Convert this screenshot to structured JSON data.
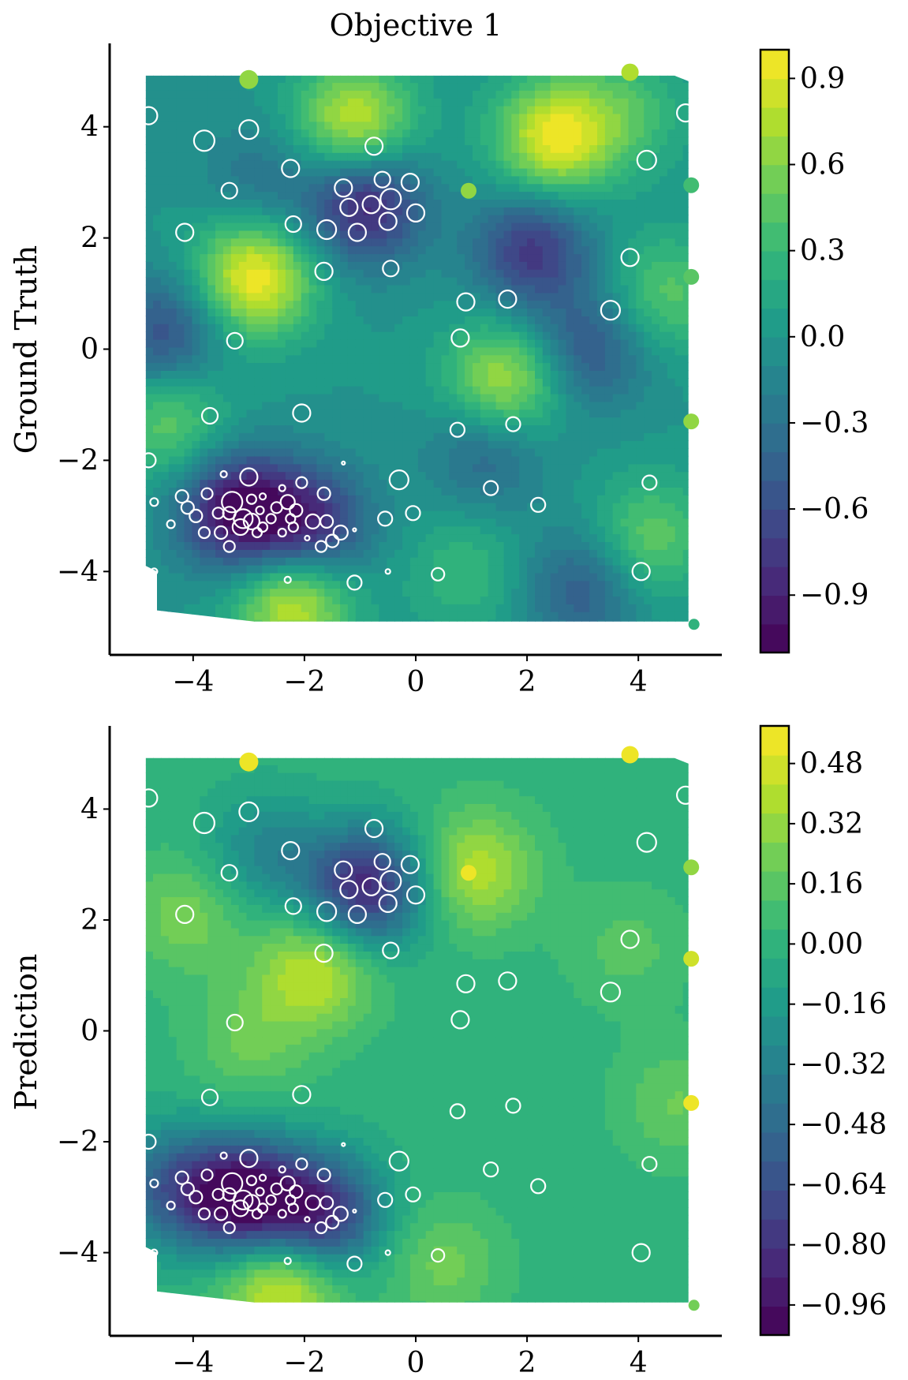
{
  "chart_data": [
    {
      "type": "contour",
      "title": "Objective 1",
      "ylabel": "Ground Truth",
      "xlabel": "",
      "xlim": [
        -5.5,
        5.5
      ],
      "ylim": [
        -5.5,
        5.5
      ],
      "xticks": [
        -4,
        -2,
        0,
        2,
        4
      ],
      "yticks": [
        -4,
        -2,
        0,
        2,
        4
      ],
      "xtick_labels": [
        "−4",
        "−2",
        "0",
        "2",
        "4"
      ],
      "ytick_labels": [
        "−4",
        "−2",
        "0",
        "2",
        "4"
      ],
      "colorbar": {
        "range": [
          -1.1,
          1.0
        ],
        "ticks": [
          0.9,
          0.6,
          0.3,
          0.0,
          -0.3,
          -0.6,
          -0.9
        ],
        "tick_labels": [
          "0.9",
          "0.6",
          "0.3",
          "0.0",
          "−0.3",
          "−0.6",
          "−0.9"
        ]
      },
      "peaks": [
        {
          "x": -2.9,
          "y": 1.3,
          "v": 1.0
        },
        {
          "x": 2.5,
          "y": 3.8,
          "v": 0.95
        },
        {
          "x": -1.1,
          "y": 4.1,
          "v": 0.85
        },
        {
          "x": 1.6,
          "y": -0.6,
          "v": 0.8
        },
        {
          "x": -2.2,
          "y": -4.5,
          "v": 0.9
        },
        {
          "x": -4.4,
          "y": -1.3,
          "v": 0.5
        },
        {
          "x": 4.2,
          "y": -3.4,
          "v": 0.5
        },
        {
          "x": 4.5,
          "y": 1.0,
          "v": 0.45
        },
        {
          "x": 3.8,
          "y": 4.3,
          "v": 0.35
        },
        {
          "x": 0.9,
          "y": -4.0,
          "v": 0.3
        },
        {
          "x": -3.2,
          "y": -2.9,
          "v": -1.05
        },
        {
          "x": -1.9,
          "y": -3.2,
          "v": -0.85
        },
        {
          "x": -0.9,
          "y": 2.6,
          "v": -0.9
        },
        {
          "x": 2.1,
          "y": 1.8,
          "v": -0.75
        },
        {
          "x": -4.5,
          "y": 0.3,
          "v": -0.6
        },
        {
          "x": 3.1,
          "y": 0.0,
          "v": -0.55
        },
        {
          "x": 1.3,
          "y": -1.8,
          "v": -0.45
        },
        {
          "x": 3.0,
          "y": -4.3,
          "v": -0.5
        },
        {
          "x": -2.8,
          "y": 3.0,
          "v": -0.3
        }
      ]
    },
    {
      "type": "contour",
      "title": "",
      "ylabel": "Prediction",
      "xlabel": "",
      "xlim": [
        -5.5,
        5.5
      ],
      "ylim": [
        -5.5,
        5.5
      ],
      "xticks": [
        -4,
        -2,
        0,
        2,
        4
      ],
      "yticks": [
        -4,
        -2,
        0,
        2,
        4
      ],
      "xtick_labels": [
        "−4",
        "−2",
        "0",
        "2",
        "4"
      ],
      "ytick_labels": [
        "−4",
        "−2",
        "0",
        "2",
        "4"
      ],
      "colorbar": {
        "range": [
          -1.04,
          0.58
        ],
        "ticks": [
          0.48,
          0.32,
          0.16,
          0.0,
          -0.16,
          -0.32,
          -0.48,
          -0.64,
          -0.8,
          -0.96
        ],
        "tick_labels": [
          "0.48",
          "0.32",
          "0.16",
          "0.00",
          "−0.16",
          "−0.32",
          "−0.48",
          "−0.64",
          "−0.80",
          "−0.96"
        ]
      },
      "peaks": [
        {
          "x": -1.8,
          "y": 1.1,
          "v": 0.45
        },
        {
          "x": -2.4,
          "y": -4.5,
          "v": 0.58
        },
        {
          "x": 1.1,
          "y": 2.9,
          "v": 0.4
        },
        {
          "x": -4.1,
          "y": 2.1,
          "v": 0.25
        },
        {
          "x": -3.0,
          "y": -0.2,
          "v": 0.2
        },
        {
          "x": 0.5,
          "y": -4.2,
          "v": 0.22
        },
        {
          "x": 4.7,
          "y": -1.3,
          "v": 0.2
        },
        {
          "x": 3.8,
          "y": 1.5,
          "v": 0.15
        },
        {
          "x": -3.1,
          "y": -3.0,
          "v": -1.0
        },
        {
          "x": -1.7,
          "y": -3.3,
          "v": -0.85
        },
        {
          "x": -0.9,
          "y": 2.6,
          "v": -0.85
        },
        {
          "x": -4.4,
          "y": -2.8,
          "v": -0.5
        },
        {
          "x": -2.7,
          "y": 3.2,
          "v": -0.3
        }
      ]
    }
  ],
  "points": [
    {
      "x": -3.0,
      "y": 4.85,
      "r": 12,
      "v": 0.6
    },
    {
      "x": 3.85,
      "y": 4.98,
      "r": 11,
      "v": 0.7
    },
    {
      "x": -4.8,
      "y": 4.2,
      "r": 11,
      "v": null
    },
    {
      "x": 4.85,
      "y": 4.25,
      "r": 11,
      "v": null
    },
    {
      "x": -3.8,
      "y": 3.75,
      "r": 13,
      "v": null
    },
    {
      "x": -3.0,
      "y": 3.95,
      "r": 12,
      "v": null
    },
    {
      "x": -0.75,
      "y": 3.65,
      "r": 11,
      "v": null
    },
    {
      "x": -2.25,
      "y": 3.25,
      "r": 11,
      "v": null
    },
    {
      "x": 4.15,
      "y": 3.4,
      "r": 12,
      "v": null
    },
    {
      "x": -3.35,
      "y": 2.85,
      "r": 10,
      "v": null
    },
    {
      "x": -1.3,
      "y": 2.9,
      "r": 11,
      "v": null
    },
    {
      "x": -0.6,
      "y": 3.05,
      "r": 10,
      "v": null
    },
    {
      "x": -0.1,
      "y": 3.0,
      "r": 11,
      "v": null
    },
    {
      "x": 0.95,
      "y": 2.85,
      "r": 10,
      "v": 0.6
    },
    {
      "x": 4.95,
      "y": 2.95,
      "r": 10,
      "v": 0.3
    },
    {
      "x": -1.2,
      "y": 2.55,
      "r": 11,
      "v": null
    },
    {
      "x": -0.8,
      "y": 2.6,
      "r": 11,
      "v": null
    },
    {
      "x": -0.45,
      "y": 2.7,
      "r": 13,
      "v": null
    },
    {
      "x": 0.0,
      "y": 2.45,
      "r": 11,
      "v": null
    },
    {
      "x": -2.2,
      "y": 2.25,
      "r": 10,
      "v": null
    },
    {
      "x": -1.6,
      "y": 2.15,
      "r": 12,
      "v": null
    },
    {
      "x": -1.05,
      "y": 2.1,
      "r": 11,
      "v": null
    },
    {
      "x": -0.5,
      "y": 2.3,
      "r": 11,
      "v": null
    },
    {
      "x": -4.15,
      "y": 2.1,
      "r": 11,
      "v": null
    },
    {
      "x": 3.85,
      "y": 1.65,
      "r": 11,
      "v": null
    },
    {
      "x": -0.45,
      "y": 1.45,
      "r": 10,
      "v": null
    },
    {
      "x": -1.65,
      "y": 1.4,
      "r": 11,
      "v": null
    },
    {
      "x": 4.95,
      "y": 1.3,
      "r": 10,
      "v": 0.45
    },
    {
      "x": 0.9,
      "y": 0.85,
      "r": 11,
      "v": null
    },
    {
      "x": 1.65,
      "y": 0.9,
      "r": 11,
      "v": null
    },
    {
      "x": 3.5,
      "y": 0.7,
      "r": 12,
      "v": null
    },
    {
      "x": -3.25,
      "y": 0.15,
      "r": 10,
      "v": null
    },
    {
      "x": 0.8,
      "y": 0.2,
      "r": 11,
      "v": null
    },
    {
      "x": -3.7,
      "y": -1.2,
      "r": 10,
      "v": null
    },
    {
      "x": -2.05,
      "y": -1.15,
      "r": 11,
      "v": null
    },
    {
      "x": 1.75,
      "y": -1.35,
      "r": 9,
      "v": null
    },
    {
      "x": 4.95,
      "y": -1.3,
      "r": 10,
      "v": 0.65
    },
    {
      "x": 0.75,
      "y": -1.45,
      "r": 9,
      "v": null
    },
    {
      "x": -4.8,
      "y": -2.0,
      "r": 9,
      "v": null
    },
    {
      "x": -1.3,
      "y": -2.05,
      "r": 2,
      "v": null
    },
    {
      "x": -3.0,
      "y": -2.3,
      "r": 11,
      "v": null
    },
    {
      "x": -3.45,
      "y": -2.25,
      "r": 4,
      "v": null
    },
    {
      "x": -0.3,
      "y": -2.35,
      "r": 12,
      "v": null
    },
    {
      "x": -2.05,
      "y": -2.4,
      "r": 7,
      "v": null
    },
    {
      "x": -2.4,
      "y": -2.5,
      "r": 4,
      "v": null
    },
    {
      "x": 1.35,
      "y": -2.5,
      "r": 9,
      "v": null
    },
    {
      "x": 4.2,
      "y": -2.4,
      "r": 9,
      "v": null
    },
    {
      "x": -4.2,
      "y": -2.65,
      "r": 8,
      "v": null
    },
    {
      "x": -3.75,
      "y": -2.6,
      "r": 7,
      "v": null
    },
    {
      "x": -1.65,
      "y": -2.6,
      "r": 8,
      "v": null
    },
    {
      "x": -4.7,
      "y": -2.75,
      "r": 5,
      "v": null
    },
    {
      "x": -3.3,
      "y": -2.75,
      "r": 13,
      "v": null
    },
    {
      "x": -2.95,
      "y": -2.7,
      "r": 6,
      "v": null
    },
    {
      "x": -2.75,
      "y": -2.65,
      "r": 4,
      "v": null
    },
    {
      "x": -2.3,
      "y": -2.75,
      "r": 9,
      "v": null
    },
    {
      "x": 2.2,
      "y": -2.8,
      "r": 9,
      "v": null
    },
    {
      "x": -4.1,
      "y": -2.85,
      "r": 8,
      "v": null
    },
    {
      "x": -3.55,
      "y": -2.95,
      "r": 7,
      "v": null
    },
    {
      "x": -3.35,
      "y": -2.95,
      "r": 8,
      "v": null
    },
    {
      "x": -2.8,
      "y": -2.9,
      "r": 5,
      "v": null
    },
    {
      "x": -2.5,
      "y": -2.85,
      "r": 7,
      "v": null
    },
    {
      "x": -2.15,
      "y": -2.9,
      "r": 8,
      "v": null
    },
    {
      "x": -0.05,
      "y": -2.95,
      "r": 9,
      "v": null
    },
    {
      "x": -3.95,
      "y": -3.0,
      "r": 8,
      "v": null
    },
    {
      "x": -3.1,
      "y": -3.05,
      "r": 12,
      "v": null
    },
    {
      "x": -2.95,
      "y": -3.1,
      "r": 10,
      "v": null
    },
    {
      "x": -2.6,
      "y": -3.05,
      "r": 6,
      "v": null
    },
    {
      "x": -2.25,
      "y": -3.05,
      "r": 6,
      "v": null
    },
    {
      "x": -1.85,
      "y": -3.1,
      "r": 9,
      "v": null
    },
    {
      "x": -1.6,
      "y": -3.1,
      "r": 8,
      "v": null
    },
    {
      "x": -0.55,
      "y": -3.05,
      "r": 9,
      "v": null
    },
    {
      "x": -4.4,
      "y": -3.15,
      "r": 5,
      "v": null
    },
    {
      "x": -3.15,
      "y": -3.2,
      "r": 10,
      "v": null
    },
    {
      "x": -2.75,
      "y": -3.2,
      "r": 6,
      "v": null
    },
    {
      "x": -2.2,
      "y": -3.2,
      "r": 6,
      "v": null
    },
    {
      "x": -3.8,
      "y": -3.3,
      "r": 7,
      "v": null
    },
    {
      "x": -3.5,
      "y": -3.3,
      "r": 8,
      "v": null
    },
    {
      "x": -2.85,
      "y": -3.3,
      "r": 6,
      "v": null
    },
    {
      "x": -2.4,
      "y": -3.3,
      "r": 5,
      "v": null
    },
    {
      "x": -1.35,
      "y": -3.3,
      "r": 9,
      "v": null
    },
    {
      "x": -1.1,
      "y": -3.25,
      "r": 2,
      "v": null
    },
    {
      "x": -1.95,
      "y": -3.4,
      "r": 3,
      "v": null
    },
    {
      "x": -1.5,
      "y": -3.45,
      "r": 8,
      "v": null
    },
    {
      "x": -3.35,
      "y": -3.55,
      "r": 7,
      "v": null
    },
    {
      "x": -1.7,
      "y": -3.55,
      "r": 7,
      "v": null
    },
    {
      "x": -4.7,
      "y": -4.0,
      "r": 4,
      "v": null
    },
    {
      "x": -0.5,
      "y": -4.0,
      "r": 3,
      "v": null
    },
    {
      "x": 0.4,
      "y": -4.05,
      "r": 8,
      "v": null
    },
    {
      "x": 4.05,
      "y": -4.0,
      "r": 11,
      "v": null
    },
    {
      "x": -2.3,
      "y": -4.15,
      "r": 4,
      "v": null
    },
    {
      "x": -1.1,
      "y": -4.2,
      "r": 9,
      "v": null
    },
    {
      "x": 5.0,
      "y": -4.95,
      "r": 7,
      "v": 0.2
    }
  ]
}
